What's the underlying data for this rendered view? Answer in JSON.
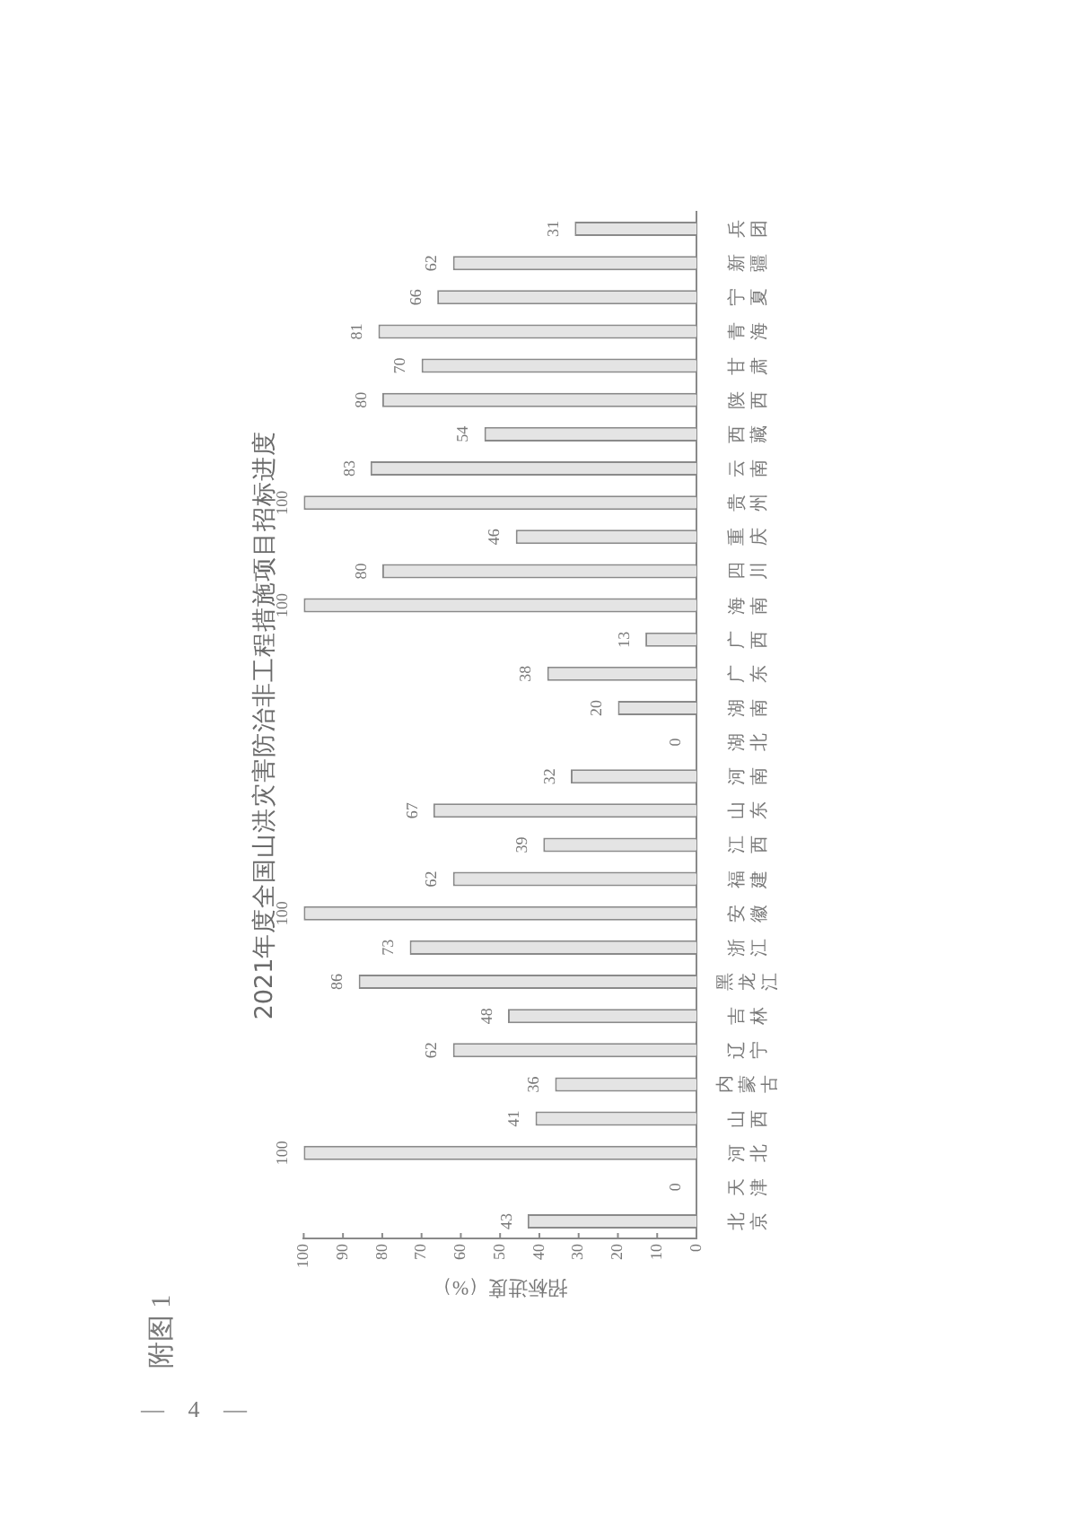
{
  "chart_data": {
    "type": "bar",
    "orientation": "horizontal",
    "title": "2021年度全国山洪灾害防治非工程措施项目招标进度",
    "xlabel": "招标进度（%）",
    "categories": [
      "兵团",
      "新疆",
      "宁夏",
      "青海",
      "甘肃",
      "陕西",
      "西藏",
      "云南",
      "贵州",
      "重庆",
      "四川",
      "海南",
      "广西",
      "广东",
      "湖南",
      "湖北",
      "河南",
      "山东",
      "江西",
      "福建",
      "安徽",
      "浙江",
      "黑龙江",
      "吉林",
      "辽宁",
      "内蒙古",
      "山西",
      "河北",
      "天津",
      "北京"
    ],
    "values": [
      31,
      62,
      66,
      81,
      70,
      80,
      54,
      83,
      100,
      46,
      80,
      100,
      13,
      38,
      20,
      0,
      32,
      67,
      39,
      62,
      100,
      73,
      86,
      48,
      62,
      36,
      41,
      100,
      0,
      43
    ],
    "color": "#e4e4e4",
    "xlim": [
      100,
      0
    ],
    "xticks": [
      100,
      90,
      80,
      70,
      60,
      50,
      40,
      30,
      20,
      10,
      0
    ],
    "data_labels": true,
    "annotations": [
      "附图 1",
      "— 4 —"
    ]
  }
}
